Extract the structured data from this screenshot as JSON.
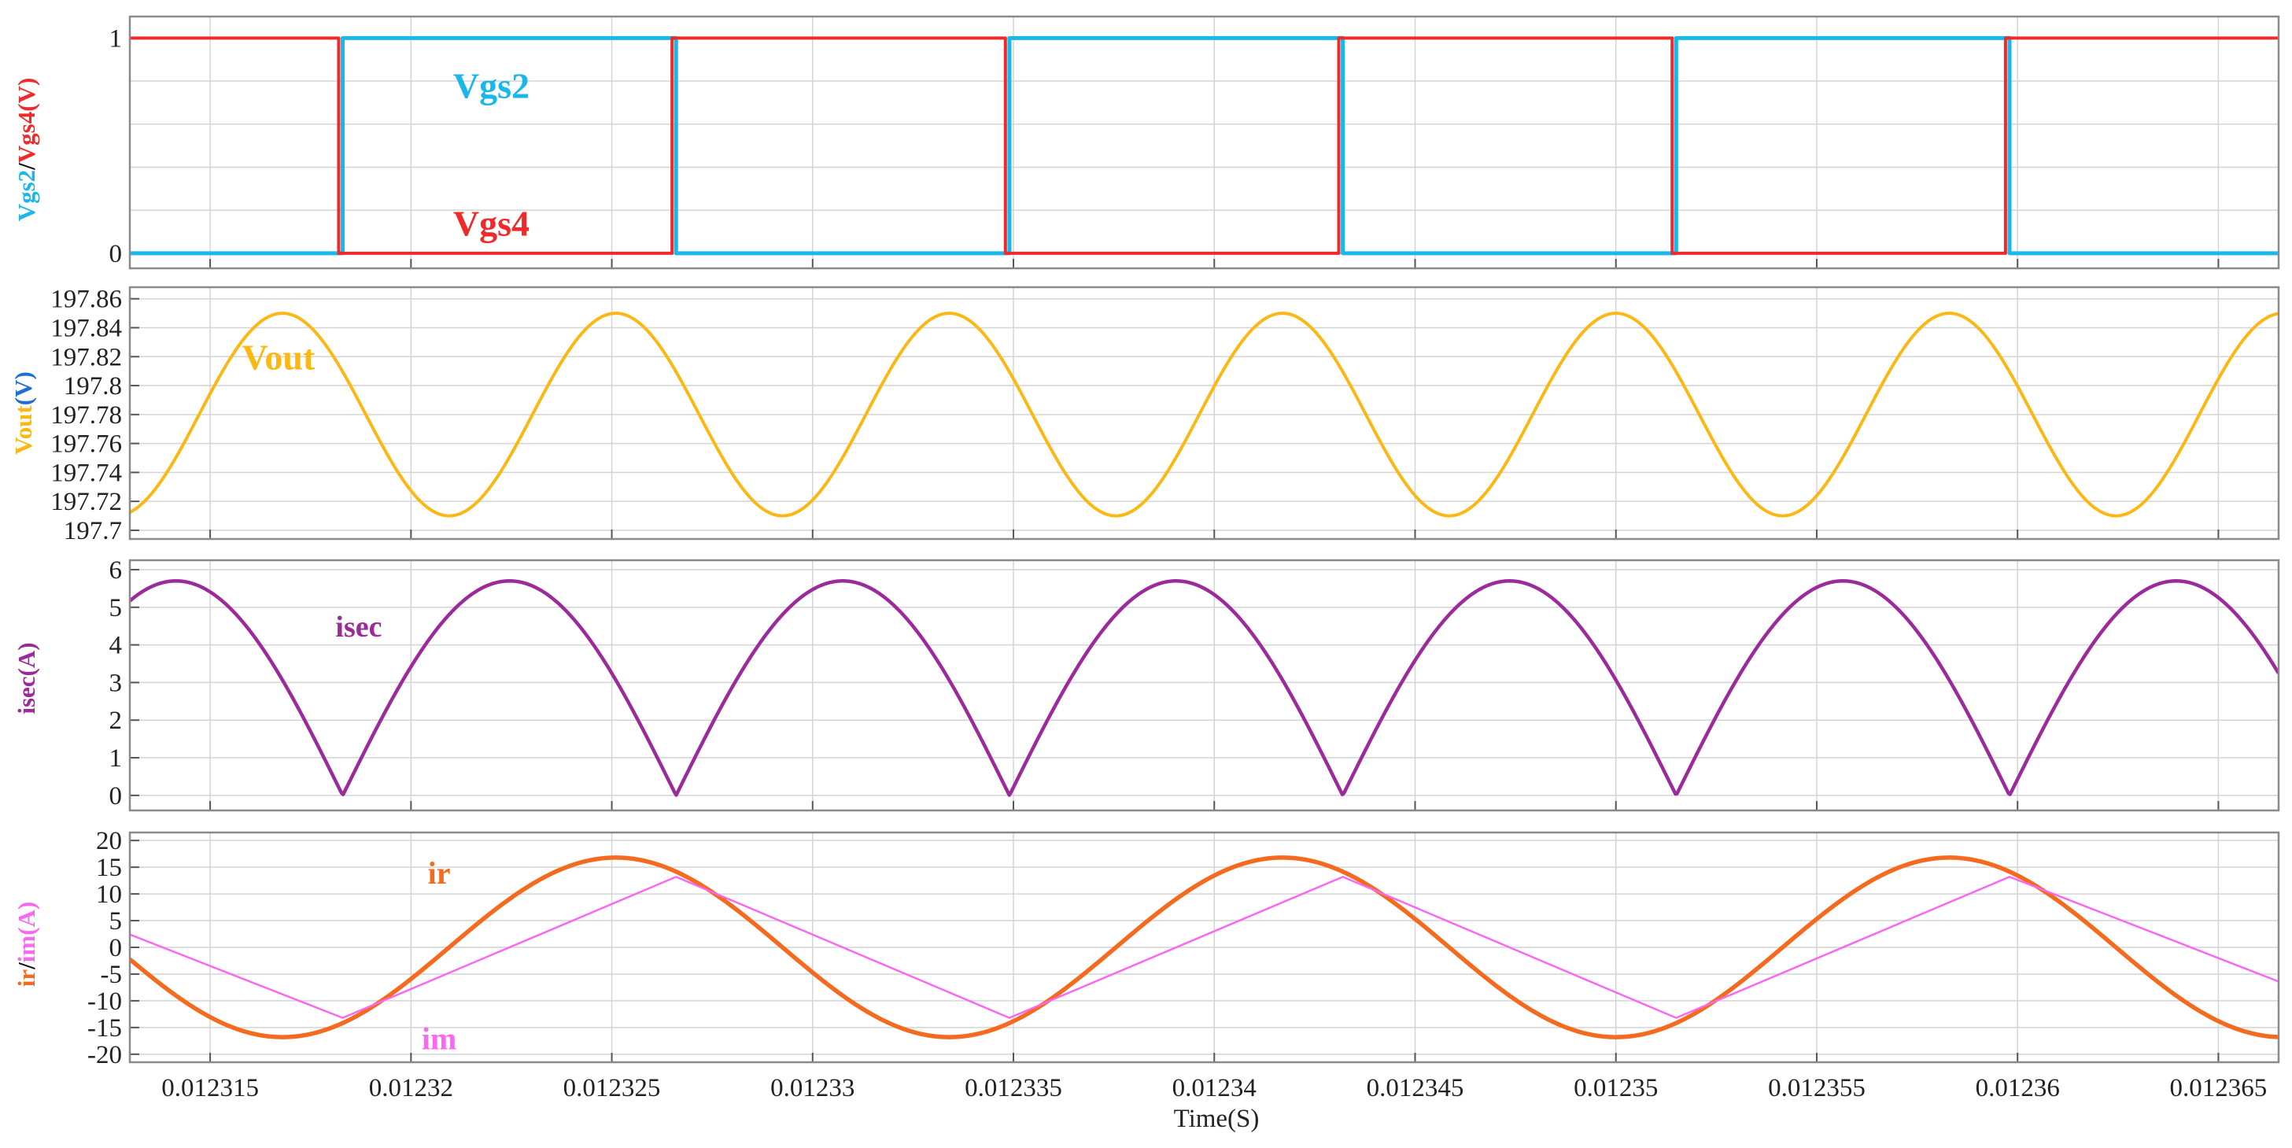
{
  "colors": {
    "vgs2": "#1ab7ea",
    "vgs4": "#ee2a2a",
    "vout": "#fbb815",
    "isec": "#9b2b9b",
    "ir": "#f46a1e",
    "im": "#f968f0",
    "grid": "#d4d4d4",
    "frame": "#8a8a8a"
  },
  "chart_data": [
    {
      "type": "line",
      "title": "",
      "xlabel": "",
      "ylabel": {
        "part1": "Vgs2",
        "sep": "/",
        "part2": "Vgs4(V)"
      },
      "xlim": [
        0.012313,
        0.0123665
      ],
      "ylim": [
        -0.07,
        1.1
      ],
      "yticks": [
        0,
        1
      ],
      "ytick_labels": [
        "0",
        "1"
      ],
      "grid": true,
      "series": [
        {
          "name": "Vgs2",
          "x": [
            0.012313,
            0.0123183,
            0.0123183,
            0.0123266,
            0.0123266,
            0.0123349,
            0.0123349,
            0.0123432,
            0.0123432,
            0.0123515,
            0.0123515,
            0.0123598,
            0.0123598,
            0.0123665
          ],
          "y": [
            0,
            0,
            1,
            1,
            0,
            0,
            1,
            1,
            0,
            0,
            1,
            1,
            0,
            0
          ]
        },
        {
          "name": "Vgs4",
          "x": [
            0.012313,
            0.0123182,
            0.0123182,
            0.0123265,
            0.0123265,
            0.0123348,
            0.0123348,
            0.0123431,
            0.0123431,
            0.0123514,
            0.0123514,
            0.0123597,
            0.0123597,
            0.0123665
          ],
          "y": [
            1,
            1,
            0,
            0,
            1,
            1,
            0,
            0,
            1,
            1,
            0,
            0,
            1,
            1
          ]
        }
      ],
      "annotations": [
        {
          "text": "Vgs2",
          "series": "Vgs2",
          "x": 0.012322,
          "y": 0.78
        },
        {
          "text": "Vgs4",
          "series": "Vgs4",
          "x": 0.012322,
          "y": 0.14
        }
      ]
    },
    {
      "type": "line",
      "title": "",
      "xlabel": "",
      "ylabel": {
        "part1": "Vout",
        "sep": "",
        "part2": "(V)"
      },
      "xlim": [
        0.012313,
        0.0123665
      ],
      "ylim": [
        197.694,
        197.868
      ],
      "yticks": [
        197.7,
        197.72,
        197.74,
        197.76,
        197.78,
        197.8,
        197.82,
        197.84,
        197.86
      ],
      "ytick_labels": [
        "197.7",
        "197.72",
        "197.74",
        "197.76",
        "197.78",
        "197.8",
        "197.82",
        "197.84",
        "197.86"
      ],
      "grid": true,
      "series": [
        {
          "name": "Vout",
          "model": "sine",
          "mean": 197.78,
          "amplitude": 0.07,
          "period": 8.3e-06,
          "peak_x": 0.0123168
        }
      ],
      "annotations": [
        {
          "text": "Vout",
          "series": "Vout",
          "x": 0.0123167,
          "y": 197.82
        }
      ]
    },
    {
      "type": "line",
      "title": "",
      "xlabel": "",
      "ylabel": {
        "part1": "isec",
        "sep": "",
        "part2": "(A)"
      },
      "xlim": [
        0.012313,
        0.0123665
      ],
      "ylim": [
        -0.4,
        6.25
      ],
      "yticks": [
        0,
        1,
        2,
        3,
        4,
        5,
        6
      ],
      "ytick_labels": [
        "0",
        "1",
        "2",
        "3",
        "4",
        "5",
        "6"
      ],
      "grid": true,
      "series": [
        {
          "name": "isec",
          "model": "rectified-sine",
          "amplitude": 5.7,
          "period": 8.3e-06,
          "zero_x": 0.0123183
        }
      ],
      "annotations": [
        {
          "text": "isec",
          "series": "isec",
          "x": 0.0123187,
          "y": 4.5
        }
      ]
    },
    {
      "type": "line",
      "title": "",
      "xlabel": "Time(S)",
      "ylabel": {
        "part1": "ir",
        "sep": "/",
        "part2": "im(A)"
      },
      "xlim": [
        0.012313,
        0.0123665
      ],
      "ylim": [
        -21.5,
        21.5
      ],
      "yticks": [
        -20,
        -15,
        -10,
        -5,
        0,
        5,
        10,
        15,
        20
      ],
      "ytick_labels": [
        "-20",
        "-15",
        "-10",
        "-5",
        "0",
        "5",
        "10",
        "15",
        "20"
      ],
      "xticks": [
        0.012315,
        0.01232,
        0.012325,
        0.01233,
        0.012335,
        0.01234,
        0.012345,
        0.01235,
        0.012355,
        0.01236,
        0.012365
      ],
      "xtick_labels": [
        "0.012315",
        "0.01232",
        "0.012325",
        "0.01233",
        "0.012335",
        "0.01234",
        "0.012345",
        "0.01235",
        "0.012355",
        "0.01236",
        "0.012365"
      ],
      "grid": true,
      "series": [
        {
          "name": "ir",
          "model": "sine",
          "amplitude": 16.8,
          "period": 1.66e-05,
          "peak_x": 0.0123251
        },
        {
          "name": "im",
          "model": "triangle",
          "x": [
            0.012313,
            0.0123183,
            0.0123266,
            0.0123349,
            0.0123432,
            0.0123515,
            0.0123598,
            0.0123665
          ],
          "y": [
            2.4,
            -13.2,
            13.2,
            -13.2,
            13.2,
            -13.2,
            13.2,
            -6.4
          ]
        }
      ],
      "annotations": [
        {
          "text": "ir",
          "series": "ir",
          "x": 0.0123207,
          "y": 14
        },
        {
          "text": "im",
          "series": "im",
          "x": 0.0123207,
          "y": -17
        }
      ]
    }
  ]
}
